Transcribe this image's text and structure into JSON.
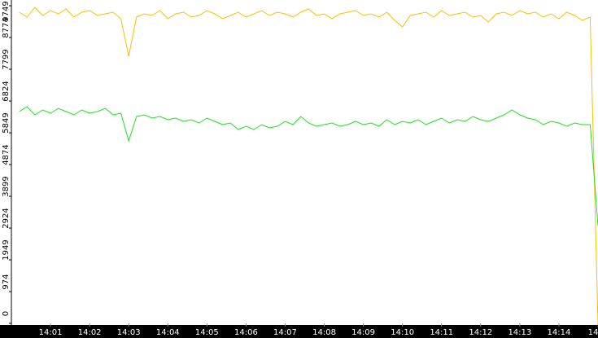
{
  "chart_data": {
    "type": "line",
    "x": [
      840.2,
      840.4,
      840.6,
      840.8,
      841,
      841.2,
      841.4,
      841.6,
      841.8,
      842,
      842.2,
      842.4,
      842.6,
      842.8,
      843,
      843.2,
      843.4,
      843.6,
      843.8,
      844,
      844.2,
      844.4,
      844.6,
      844.8,
      845,
      845.2,
      845.4,
      845.6,
      845.8,
      846,
      846.2,
      846.4,
      846.6,
      846.8,
      847,
      847.2,
      847.4,
      847.6,
      847.8,
      848,
      848.2,
      848.4,
      848.6,
      848.8,
      849,
      849.2,
      849.4,
      849.6,
      849.8,
      850,
      850.2,
      850.4,
      850.6,
      850.8,
      851,
      851.2,
      851.4,
      851.6,
      851.8,
      852,
      852.2,
      852.4,
      852.6,
      852.8,
      853,
      853.2,
      853.4,
      853.6,
      853.8,
      854,
      854.2,
      854.4,
      854.6,
      854.8,
      855
    ],
    "series": [
      {
        "color": "#f5c000",
        "values": [
          9550,
          9400,
          9700,
          9450,
          9600,
          9500,
          9650,
          9400,
          9550,
          9600,
          9450,
          9500,
          9550,
          9350,
          8200,
          9400,
          9500,
          9450,
          9600,
          9350,
          9500,
          9550,
          9400,
          9450,
          9600,
          9500,
          9350,
          9450,
          9550,
          9400,
          9500,
          9600,
          9450,
          9550,
          9500,
          9400,
          9550,
          9650,
          9450,
          9500,
          9350,
          9500,
          9550,
          9600,
          9450,
          9500,
          9400,
          9550,
          9300,
          9100,
          9450,
          9500,
          9550,
          9400,
          9600,
          9450,
          9500,
          9550,
          9400,
          9450,
          9250,
          9500,
          9550,
          9450,
          9600,
          9500,
          9550,
          9400,
          9500,
          9350,
          9550,
          9450,
          9300,
          9400,
          0
        ]
      },
      {
        "color": "#22dd22",
        "values": [
          6500,
          6650,
          6400,
          6550,
          6450,
          6600,
          6500,
          6400,
          6550,
          6450,
          6500,
          6600,
          6400,
          6450,
          5600,
          6350,
          6400,
          6300,
          6350,
          6250,
          6300,
          6200,
          6250,
          6150,
          6300,
          6200,
          6100,
          6150,
          5950,
          6050,
          5950,
          6100,
          6000,
          6050,
          6200,
          6100,
          6350,
          6150,
          6050,
          6100,
          6150,
          6050,
          6100,
          6200,
          6100,
          6150,
          6050,
          6250,
          6100,
          6200,
          6150,
          6250,
          6100,
          6200,
          6300,
          6150,
          6250,
          6200,
          6350,
          6250,
          6200,
          6300,
          6400,
          6550,
          6400,
          6300,
          6250,
          6100,
          6200,
          6150,
          6050,
          6150,
          6100,
          6100,
          3000
        ]
      }
    ],
    "xlim": [
      840,
      855
    ],
    "ylim": [
      0,
      9925
    ],
    "xticks": [
      {
        "value": 841,
        "label": "14:01"
      },
      {
        "value": 842,
        "label": "14:02"
      },
      {
        "value": 843,
        "label": "14:03"
      },
      {
        "value": 844,
        "label": "14:04"
      },
      {
        "value": 845,
        "label": "14:05"
      },
      {
        "value": 846,
        "label": "14:06"
      },
      {
        "value": 847,
        "label": "14:07"
      },
      {
        "value": 848,
        "label": "14:08"
      },
      {
        "value": 849,
        "label": "14:09"
      },
      {
        "value": 850,
        "label": "14:10"
      },
      {
        "value": 851,
        "label": "14:11"
      },
      {
        "value": 852,
        "label": "14:12"
      },
      {
        "value": 853,
        "label": "14:13"
      },
      {
        "value": 854,
        "label": "14:14"
      },
      {
        "value": 855,
        "label": "14"
      }
    ],
    "yticks": [
      0,
      974,
      1949,
      2924,
      3899,
      4874,
      5849,
      6824,
      7799,
      8774,
      9749
    ],
    "grid": false
  }
}
